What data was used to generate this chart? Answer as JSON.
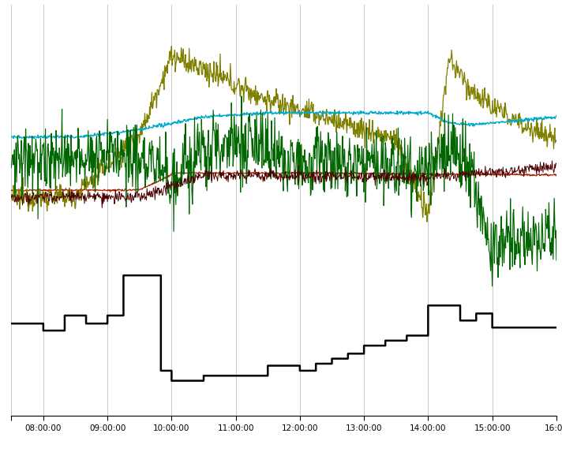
{
  "bg_color": "#ffffff",
  "axis_bg_color": "#f0ece0",
  "grid_color": "#c8c8c8",
  "olive_color": "#808000",
  "cyan_color": "#00aacc",
  "green_color": "#006600",
  "darkred_color": "#4d0000",
  "red_color": "#aa2200",
  "black_color": "#000000",
  "fig_width": 7.12,
  "fig_height": 5.73,
  "dpi": 100
}
